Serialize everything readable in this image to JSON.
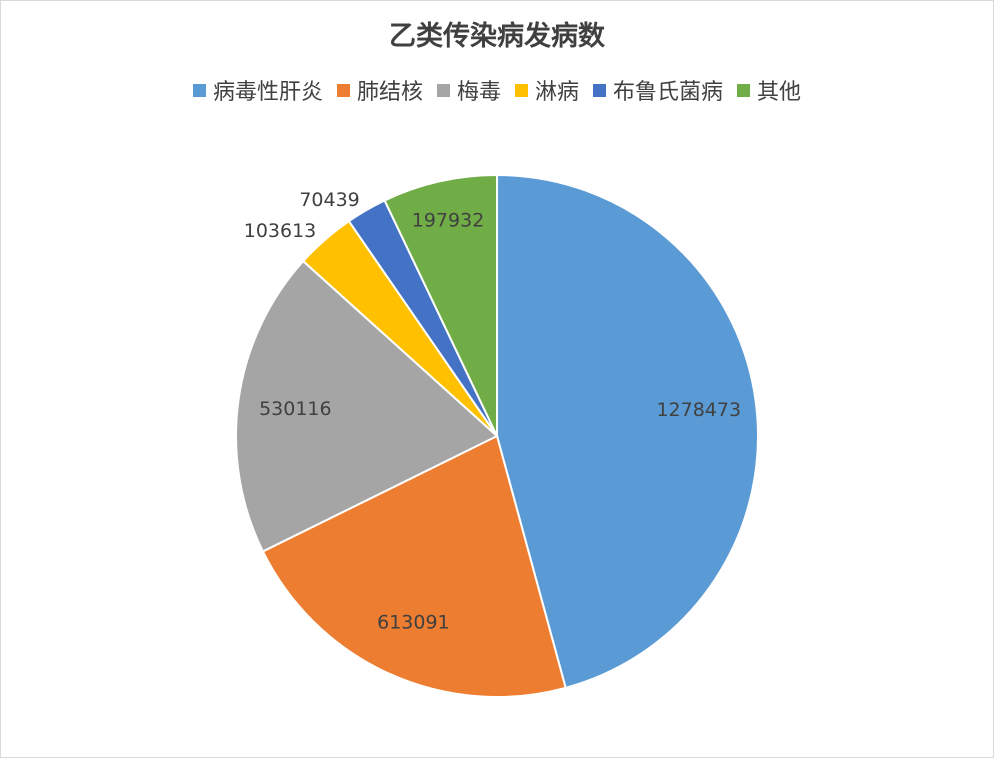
{
  "chart_data": {
    "type": "pie",
    "title": "乙类传染病发病数",
    "legend_position": "top",
    "categories": [
      "病毒性肝炎",
      "肺结核",
      "梅毒",
      "淋病",
      "布鲁氏菌病",
      "其他"
    ],
    "values": [
      1278473,
      613091,
      530116,
      103613,
      70439,
      197932
    ],
    "colors": [
      "#5b9bd5",
      "#ed7d31",
      "#a5a5a5",
      "#ffc000",
      "#4472c4",
      "#70ad47"
    ],
    "data_labels": [
      "1278473",
      "613091",
      "530116",
      "103613",
      "70439",
      "197932"
    ]
  }
}
